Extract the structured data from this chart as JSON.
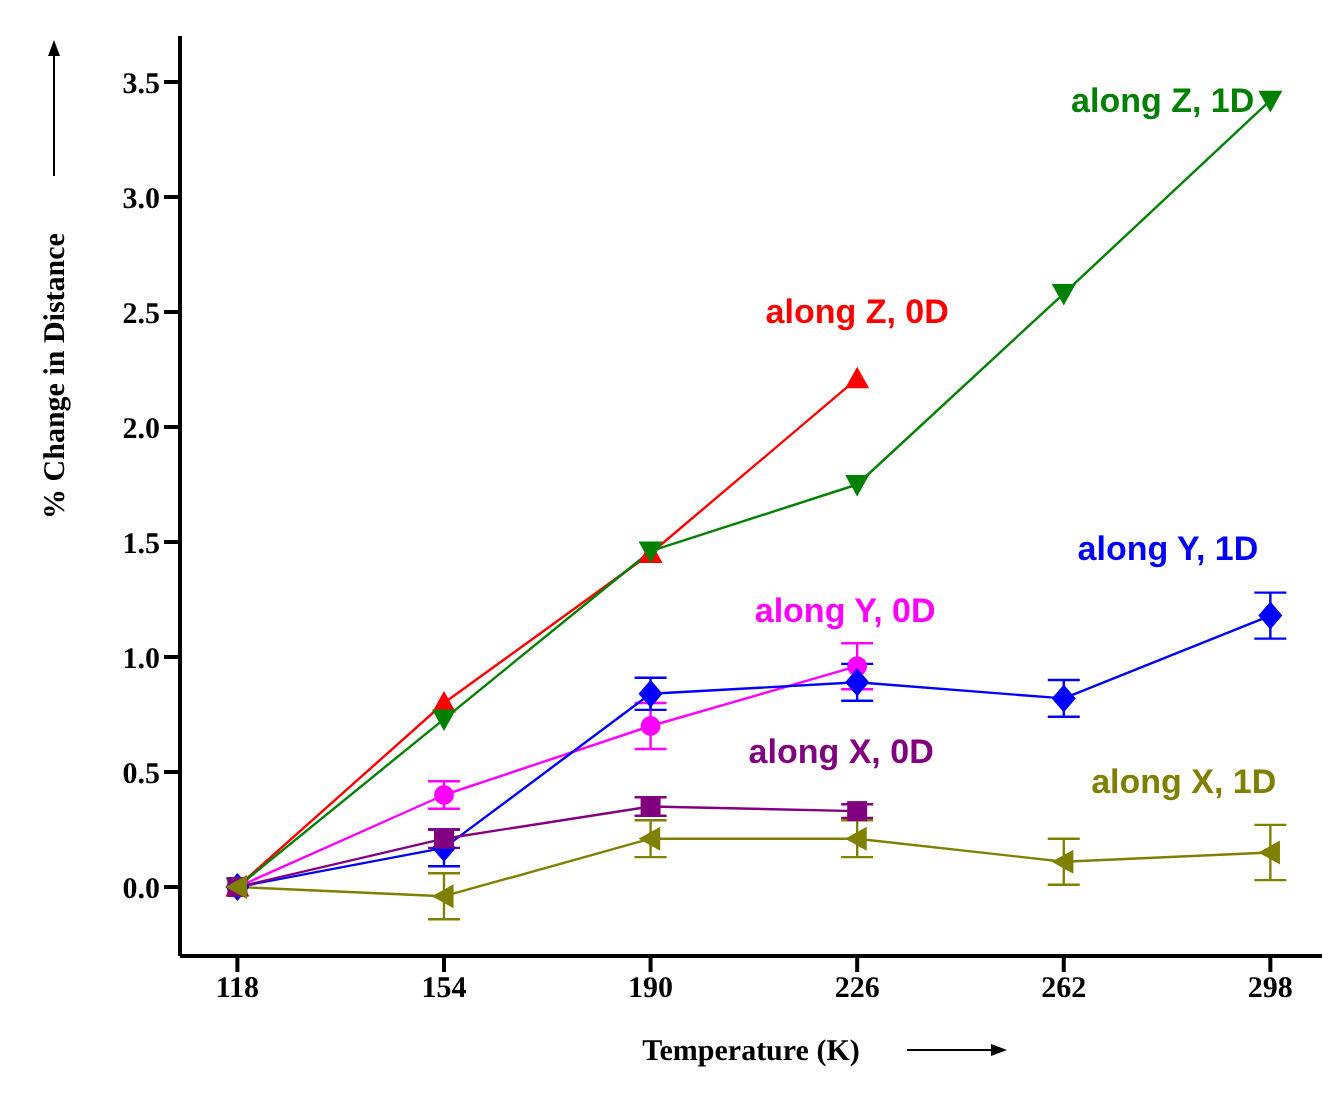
{
  "chart_data": {
    "type": "line",
    "xlabel": "Temperature (K)",
    "ylabel": "% Change in Distance",
    "x": [
      118,
      154,
      190,
      226,
      262,
      298
    ],
    "xlim": [
      108,
      307
    ],
    "xticks": [
      118,
      154,
      190,
      226,
      262,
      298
    ],
    "ylim": [
      -0.3,
      3.7
    ],
    "yticks": [
      {
        "value": 0,
        "label": "0.0"
      },
      0.5,
      {
        "value": 1,
        "label": "1.0"
      },
      1.5,
      {
        "value": 2,
        "label": "2.0"
      },
      2.5,
      {
        "value": 3,
        "label": "3.0"
      },
      3.5
    ],
    "grid": false,
    "line_style": "solid",
    "series": [
      {
        "name": "along Z, 0D",
        "color": "#ff0000",
        "marker": "triangle",
        "x": [
          118,
          154,
          190,
          226
        ],
        "values": [
          0,
          0.8,
          1.45,
          2.21
        ]
      },
      {
        "name": "along Z, 1D",
        "color": "#008000",
        "marker": "triangle",
        "values": [
          0,
          0.73,
          1.46,
          1.75,
          2.58,
          3.42
        ]
      },
      {
        "name": "along Y, 0D",
        "color": "#ff00ff",
        "marker": "circle",
        "x": [
          118,
          154,
          190,
          226
        ],
        "values": [
          0,
          0.4,
          0.7,
          0.96
        ],
        "errors": [
          null,
          0.06,
          0.1,
          0.1
        ]
      },
      {
        "name": "along Y, 1D",
        "color": "#0000ff",
        "marker": "diamond",
        "values": [
          0,
          0.17,
          0.84,
          0.89,
          0.82,
          1.18
        ],
        "errors": [
          null,
          0.08,
          0.07,
          0.08,
          0.08,
          0.1
        ]
      },
      {
        "name": "along X, 0D",
        "color": "#800080",
        "marker": "square",
        "x": [
          118,
          154,
          190,
          226
        ],
        "values": [
          0,
          0.21,
          0.35,
          0.33
        ],
        "errors": [
          null,
          0.04,
          0.04,
          0.03
        ]
      },
      {
        "name": "along X, 1D",
        "color": "#808000",
        "marker": "triangle",
        "values": [
          0,
          -0.04,
          0.21,
          0.21,
          0.11,
          0.15
        ],
        "errors": [
          null,
          0.1,
          0.08,
          0.08,
          0.1,
          0.12
        ]
      }
    ]
  }
}
